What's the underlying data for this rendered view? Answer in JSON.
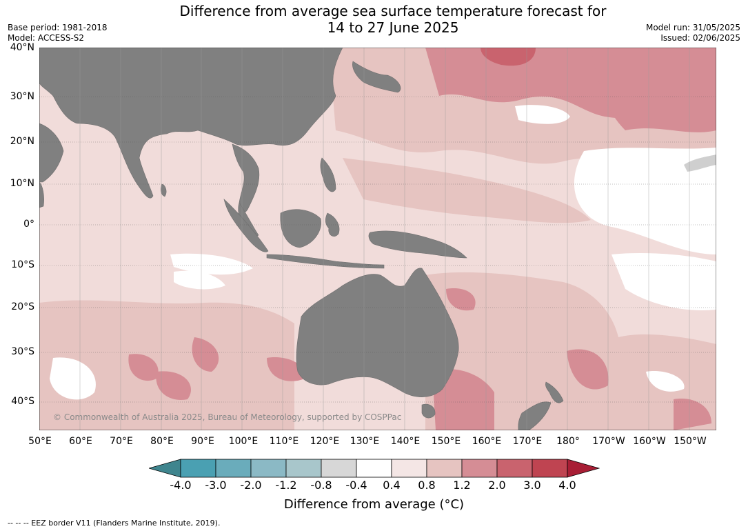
{
  "title": {
    "line1": "Difference from average sea surface temperature forecast for",
    "line2": "14 to 27 June 2025"
  },
  "meta_left": {
    "base_period": "Base period: 1981-2018",
    "model": "Model: ACCESS-S2"
  },
  "meta_right": {
    "model_run": "Model run: 31/05/2025",
    "issued": "Issued: 02/06/2025"
  },
  "lat_labels": [
    "40°N",
    "30°N",
    "20°N",
    "10°N",
    "0°",
    "10°S",
    "20°S",
    "30°S",
    "40°S"
  ],
  "lon_labels": [
    "50°E",
    "60°E",
    "70°E",
    "80°E",
    "90°E",
    "100°E",
    "110°E",
    "120°E",
    "130°E",
    "140°E",
    "150°E",
    "160°E",
    "170°E",
    "180°",
    "170°W",
    "160°W",
    "150°W"
  ],
  "copyright": "© Commonwealth of Australia 2025, Bureau of Meteorology, supported by COSPPac",
  "colorbar": {
    "ticks": [
      "-4.0",
      "-3.0",
      "-2.0",
      "-1.2",
      "-0.8",
      "-0.4",
      "0.4",
      "0.8",
      "1.2",
      "2.0",
      "3.0",
      "4.0"
    ],
    "colors": [
      "#3f858e",
      "#4aa0b2",
      "#6aacbb",
      "#8bb9c5",
      "#a8c6cb",
      "#d7d7d7",
      "#ffffff",
      "#f4e6e5",
      "#e6c4c1",
      "#d58d95",
      "#c9636e",
      "#bf4451",
      "#a81e35"
    ],
    "label": "Difference from average (°C)"
  },
  "eez_note": "-- -- -- EEZ border V11 (Flanders Marine Institute, 2019).",
  "palette": {
    "land": "#808080",
    "background_anomaly": "#f1dcda"
  }
}
